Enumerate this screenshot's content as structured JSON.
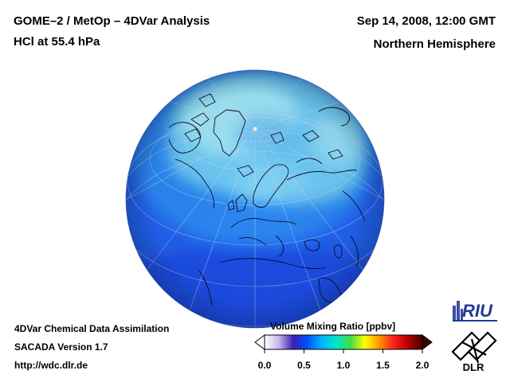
{
  "header": {
    "title": "GOME–2 / MetOp – 4DVar Analysis",
    "subtitle": "HCl at 55.4 hPa",
    "datetime": "Sep 14, 2008, 12:00 GMT",
    "region": "Northern Hemisphere"
  },
  "footer": {
    "line1": "4DVar Chemical Data Assimilation",
    "line2": "SACADA Version 1.7",
    "url": "http://wdc.dlr.de"
  },
  "colorbar": {
    "title": "Volume Mixing Ratio [ppbv]",
    "ticks": [
      "0.0",
      "0.5",
      "1.0",
      "1.5",
      "2.0"
    ],
    "tick_values": [
      0.0,
      0.5,
      1.0,
      1.5,
      2.0
    ],
    "range": [
      0.0,
      2.0
    ],
    "stops": [
      "#ffffff",
      "#c8b4e6",
      "#3c1eb4",
      "#0050ff",
      "#00b4ff",
      "#00e6c8",
      "#46dc46",
      "#ffff00",
      "#ff9600",
      "#ff1e1e",
      "#b40000",
      "#460000"
    ]
  },
  "logos": {
    "riu": "RIU",
    "dlr": "DLR"
  },
  "map": {
    "projection": "orthographic",
    "hemisphere": "Northern",
    "field_colors": {
      "low": "#1e50f0",
      "mid": "#1e8cf5",
      "high": "#7ed7f5",
      "peak": "#a6ebf5"
    }
  }
}
